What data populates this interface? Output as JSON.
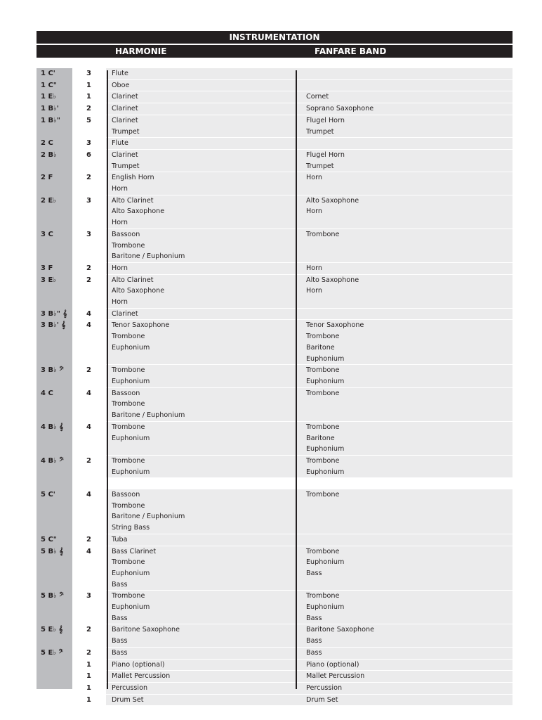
{
  "header": {
    "title": "INSTRUMENTATION",
    "columns": [
      "HARMONIE",
      "FANFARE BAND"
    ]
  },
  "rows": [
    {
      "part": "1 C'",
      "count": 3,
      "harmonie": [
        "Flute"
      ],
      "fanfare": []
    },
    {
      "part": "1 C\"",
      "count": 1,
      "harmonie": [
        "Oboe"
      ],
      "fanfare": []
    },
    {
      "part": "1 E♭",
      "count": 1,
      "harmonie": [
        "Clarinet"
      ],
      "fanfare": [
        "Cornet"
      ]
    },
    {
      "part": "1 B♭'",
      "count": 2,
      "harmonie": [
        "Clarinet"
      ],
      "fanfare": [
        "Soprano Saxophone"
      ]
    },
    {
      "part": "1 B♭\"",
      "count": 5,
      "harmonie": [
        "Clarinet",
        "Trumpet"
      ],
      "fanfare": [
        "Flugel Horn",
        "Trumpet"
      ]
    },
    {
      "part": "2 C",
      "count": 3,
      "harmonie": [
        "Flute"
      ],
      "fanfare": []
    },
    {
      "part": "2 B♭",
      "count": 6,
      "harmonie": [
        "Clarinet",
        "Trumpet"
      ],
      "fanfare": [
        "Flugel Horn",
        "Trumpet"
      ]
    },
    {
      "part": "2 F",
      "count": 2,
      "harmonie": [
        "English Horn",
        "Horn"
      ],
      "fanfare": [
        "Horn"
      ]
    },
    {
      "part": "2 E♭",
      "count": 3,
      "harmonie": [
        "Alto Clarinet",
        "Alto Saxophone",
        "Horn"
      ],
      "fanfare": [
        "Alto Saxophone",
        "Horn"
      ]
    },
    {
      "part": "3 C",
      "count": 3,
      "harmonie": [
        "Bassoon",
        "Trombone",
        "Baritone / Euphonium"
      ],
      "fanfare": [
        "Trombone"
      ]
    },
    {
      "part": "3 F",
      "count": 2,
      "harmonie": [
        "Horn"
      ],
      "fanfare": [
        "Horn"
      ]
    },
    {
      "part": "3 E♭",
      "count": 2,
      "harmonie": [
        "Alto Clarinet",
        "Alto Saxophone",
        "Horn"
      ],
      "fanfare": [
        "Alto Saxophone",
        "Horn"
      ]
    },
    {
      "part": "3 B♭\" 𝄞",
      "count": 4,
      "harmonie": [
        "Clarinet"
      ],
      "fanfare": []
    },
    {
      "part": "3 B♭' 𝄞",
      "count": 4,
      "harmonie": [
        "Tenor Saxophone",
        "Trombone",
        "Euphonium"
      ],
      "fanfare": [
        "Tenor Saxophone",
        "Trombone",
        "Baritone",
        "Euphonium"
      ]
    },
    {
      "part": "3 B♭ 𝄢",
      "count": 2,
      "harmonie": [
        "Trombone",
        "Euphonium"
      ],
      "fanfare": [
        "Trombone",
        "Euphonium"
      ]
    },
    {
      "part": "4 C",
      "count": 4,
      "harmonie": [
        "Bassoon",
        "Trombone",
        "Baritone / Euphonium"
      ],
      "fanfare": [
        "Trombone"
      ]
    },
    {
      "part": "4 B♭ 𝄞",
      "count": 4,
      "harmonie": [
        "Trombone",
        "Euphonium"
      ],
      "fanfare": [
        "Trombone",
        "Baritone",
        "Euphonium"
      ]
    },
    {
      "part": "4 B♭ 𝄢",
      "count": 2,
      "harmonie": [
        "Trombone",
        "Euphonium"
      ],
      "fanfare": [
        "Trombone",
        "Euphonium"
      ]
    },
    {
      "part": "5 C'",
      "count": 4,
      "harmonie": [
        "Bassoon",
        "Trombone",
        "Baritone / Euphonium",
        "String Bass"
      ],
      "fanfare": [
        "Trombone"
      ]
    },
    {
      "part": "5 C\"",
      "count": 2,
      "harmonie": [
        "Tuba"
      ],
      "fanfare": []
    },
    {
      "part": "5 B♭ 𝄞",
      "count": 4,
      "harmonie": [
        "Bass Clarinet",
        "Trombone",
        "Euphonium",
        "Bass"
      ],
      "fanfare": [
        "Trombone",
        "Euphonium",
        "Bass"
      ]
    },
    {
      "part": "5 B♭ 𝄢",
      "count": 3,
      "harmonie": [
        "Trombone",
        "Euphonium",
        "Bass"
      ],
      "fanfare": [
        "Trombone",
        "Euphonium",
        "Bass"
      ]
    },
    {
      "part": "5 E♭ 𝄞",
      "count": 2,
      "harmonie": [
        "Baritone Saxophone",
        "Bass"
      ],
      "fanfare": [
        "Baritone Saxophone",
        "Bass"
      ]
    },
    {
      "part": "5 E♭ 𝄢",
      "count": 2,
      "harmonie": [
        "Bass"
      ],
      "fanfare": [
        "Bass"
      ]
    },
    {
      "count": 1,
      "harmonie": [
        "Piano (optional)"
      ],
      "fanfare": [
        "Piano (optional)"
      ]
    },
    {
      "count": 1,
      "harmonie": [
        "Mallet Percussion"
      ],
      "fanfare": [
        "Mallet Percussion"
      ]
    },
    {
      "count": 1,
      "harmonie": [
        "Percussion"
      ],
      "fanfare": [
        "Percussion"
      ]
    },
    {
      "count": 1,
      "harmonie": [
        "Drum Set"
      ],
      "fanfare": [
        "Drum Set"
      ]
    }
  ]
}
